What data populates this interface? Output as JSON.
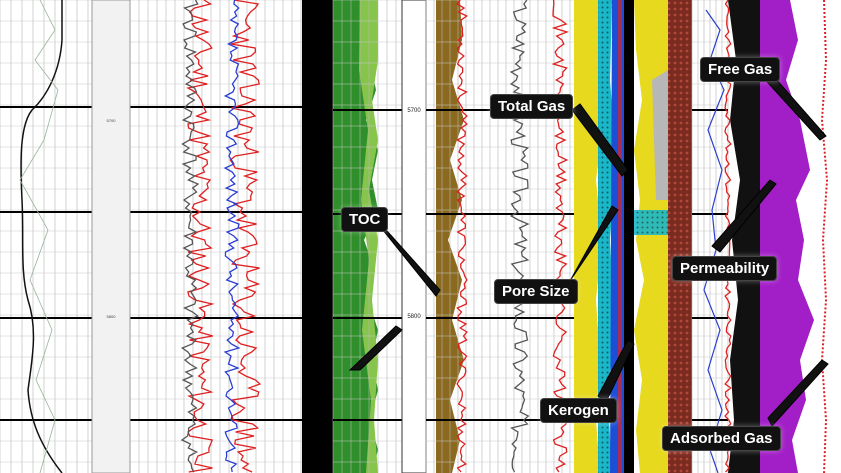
{
  "depth_labels": [
    "5700",
    "5800"
  ],
  "callouts": {
    "toc": "TOC",
    "total_gas": "Total Gas",
    "pore_size": "Pore Size",
    "kerogen": "Kerogen",
    "free_gas": "Free Gas",
    "permeability": "Permeability",
    "adsorbed_gas": "Adsorbed Gas"
  },
  "colors": {
    "toc_fill": "#2f8f2a",
    "organic_fill": "#8b6a1f",
    "pore_yellow": "#e6d91e",
    "kerogen_cyan": "#19c4d6",
    "kerogen_blue": "#1c4fd6",
    "permeability_brown": "#7a2b20",
    "free_gas_purple": "#a21fc7",
    "curve_red": "#e02020",
    "curve_blue": "#2a3fd0",
    "curve_black": "#111111"
  }
}
